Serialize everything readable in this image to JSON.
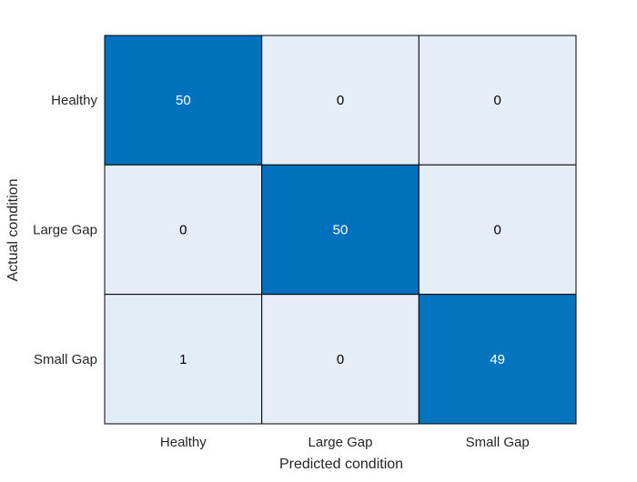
{
  "chart_data": {
    "type": "heatmap",
    "title": "",
    "xlabel": "Predicted condition",
    "ylabel": "Actual condition",
    "x_categories": [
      "Healthy",
      "Large Gap",
      "Small Gap"
    ],
    "y_categories": [
      "Healthy",
      "Large Gap",
      "Small Gap"
    ],
    "values": [
      [
        50,
        0,
        0
      ],
      [
        0,
        50,
        0
      ],
      [
        1,
        0,
        49
      ]
    ],
    "colors": {
      "high": "#0072bd",
      "low": "#e5eef7",
      "text_on_high": "#ffffff",
      "text_on_low": "#000000",
      "cell_border": "#000000"
    }
  }
}
